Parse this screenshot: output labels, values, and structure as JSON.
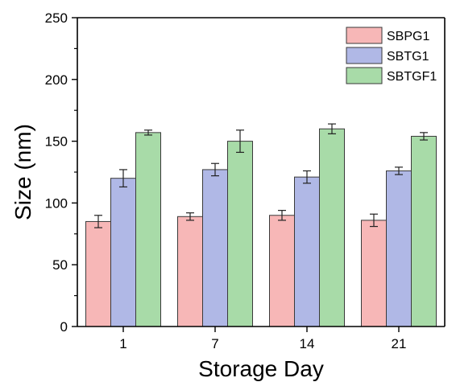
{
  "chart_data": {
    "type": "bar",
    "title": "",
    "xlabel": "Storage Day",
    "ylabel": "Size (nm)",
    "categories": [
      "1",
      "7",
      "14",
      "21"
    ],
    "ylim": [
      0,
      250
    ],
    "y_ticks": [
      "0",
      "50",
      "100",
      "150",
      "200",
      "250"
    ],
    "grid": false,
    "legend_position": "top-right",
    "series": [
      {
        "name": "SBPG1",
        "color": "#f7b7b7",
        "values": [
          85,
          89,
          90,
          86
        ],
        "errors": [
          5,
          3,
          4,
          5
        ]
      },
      {
        "name": "SBTG1",
        "color": "#b0b8e6",
        "values": [
          120,
          127,
          121,
          126
        ],
        "errors": [
          7,
          5,
          5,
          3
        ]
      },
      {
        "name": "SBTGF1",
        "color": "#a8dba8",
        "values": [
          157,
          150,
          160,
          154
        ],
        "errors": [
          2,
          9,
          4,
          3
        ]
      }
    ]
  }
}
